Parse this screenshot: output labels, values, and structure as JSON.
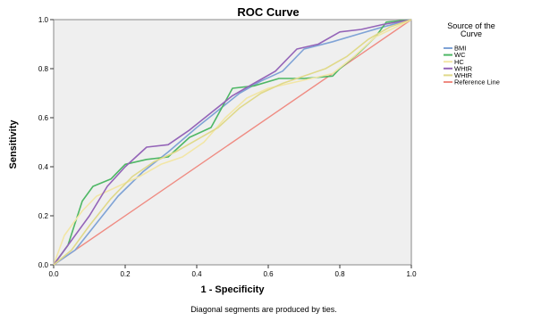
{
  "chart_data": {
    "type": "line",
    "title": "ROC Curve",
    "xlabel": "1 - Specificity",
    "ylabel": "Sensitivity",
    "xlim": [
      0.0,
      1.0
    ],
    "ylim": [
      0.0,
      1.0
    ],
    "x_ticks": [
      "0.0",
      "0.2",
      "0.4",
      "0.6",
      "0.8",
      "1.0"
    ],
    "y_ticks": [
      "0.0",
      "0.2",
      "0.4",
      "0.6",
      "0.8",
      "1.0"
    ],
    "grid": false,
    "legend_title": "Source of the Curve",
    "legend_position": "right",
    "footnote": "Diagonal segments are produced by ties.",
    "colors": {
      "background": "#efefef",
      "BMI": "#7fa3d6",
      "WC": "#4eb765",
      "HC": "#f2e6a6",
      "WHtR": "#9464b8",
      "WHtR_2": "#e0d98a",
      "Reference Line": "#ef8b82"
    },
    "series": [
      {
        "name": "BMI",
        "color": "#7fa3d6",
        "x": [
          0.0,
          0.06,
          0.12,
          0.18,
          0.25,
          0.32,
          0.4,
          0.46,
          0.52,
          0.58,
          0.64,
          0.7,
          0.78,
          0.85,
          0.92,
          1.0
        ],
        "y": [
          0.0,
          0.06,
          0.17,
          0.28,
          0.38,
          0.46,
          0.56,
          0.63,
          0.7,
          0.75,
          0.79,
          0.88,
          0.91,
          0.94,
          0.97,
          1.0
        ]
      },
      {
        "name": "WC",
        "color": "#4eb765",
        "x": [
          0.0,
          0.04,
          0.08,
          0.11,
          0.16,
          0.2,
          0.26,
          0.32,
          0.38,
          0.44,
          0.5,
          0.56,
          0.63,
          0.7,
          0.78,
          0.8,
          0.85,
          0.9,
          0.93,
          1.0
        ],
        "y": [
          0.0,
          0.08,
          0.26,
          0.32,
          0.35,
          0.41,
          0.43,
          0.44,
          0.52,
          0.56,
          0.72,
          0.73,
          0.76,
          0.76,
          0.77,
          0.8,
          0.86,
          0.93,
          0.99,
          1.0
        ]
      },
      {
        "name": "HC",
        "color": "#f2e6a6",
        "x": [
          0.0,
          0.03,
          0.08,
          0.12,
          0.18,
          0.24,
          0.3,
          0.36,
          0.42,
          0.48,
          0.54,
          0.6,
          0.66,
          0.72,
          0.78,
          0.84,
          0.9,
          1.0
        ],
        "y": [
          0.0,
          0.12,
          0.22,
          0.28,
          0.32,
          0.36,
          0.41,
          0.44,
          0.5,
          0.6,
          0.68,
          0.72,
          0.74,
          0.76,
          0.78,
          0.85,
          0.93,
          1.0
        ]
      },
      {
        "name": "WHtR",
        "color": "#9464b8",
        "x": [
          0.0,
          0.05,
          0.1,
          0.15,
          0.2,
          0.26,
          0.32,
          0.38,
          0.44,
          0.5,
          0.56,
          0.62,
          0.68,
          0.74,
          0.8,
          0.86,
          0.92,
          1.0
        ],
        "y": [
          0.0,
          0.1,
          0.2,
          0.32,
          0.4,
          0.48,
          0.49,
          0.55,
          0.62,
          0.69,
          0.74,
          0.79,
          0.88,
          0.9,
          0.95,
          0.96,
          0.98,
          1.0
        ]
      },
      {
        "name": "WHtR",
        "color": "#e0d98a",
        "x": [
          0.0,
          0.05,
          0.1,
          0.16,
          0.22,
          0.28,
          0.34,
          0.4,
          0.46,
          0.52,
          0.58,
          0.64,
          0.7,
          0.76,
          0.82,
          0.88,
          0.94,
          1.0
        ],
        "y": [
          0.0,
          0.06,
          0.16,
          0.27,
          0.36,
          0.42,
          0.46,
          0.51,
          0.56,
          0.64,
          0.7,
          0.74,
          0.77,
          0.8,
          0.85,
          0.92,
          0.97,
          1.0
        ]
      },
      {
        "name": "Reference Line",
        "color": "#ef8b82",
        "x": [
          0.0,
          1.0
        ],
        "y": [
          0.0,
          1.0
        ]
      }
    ]
  }
}
